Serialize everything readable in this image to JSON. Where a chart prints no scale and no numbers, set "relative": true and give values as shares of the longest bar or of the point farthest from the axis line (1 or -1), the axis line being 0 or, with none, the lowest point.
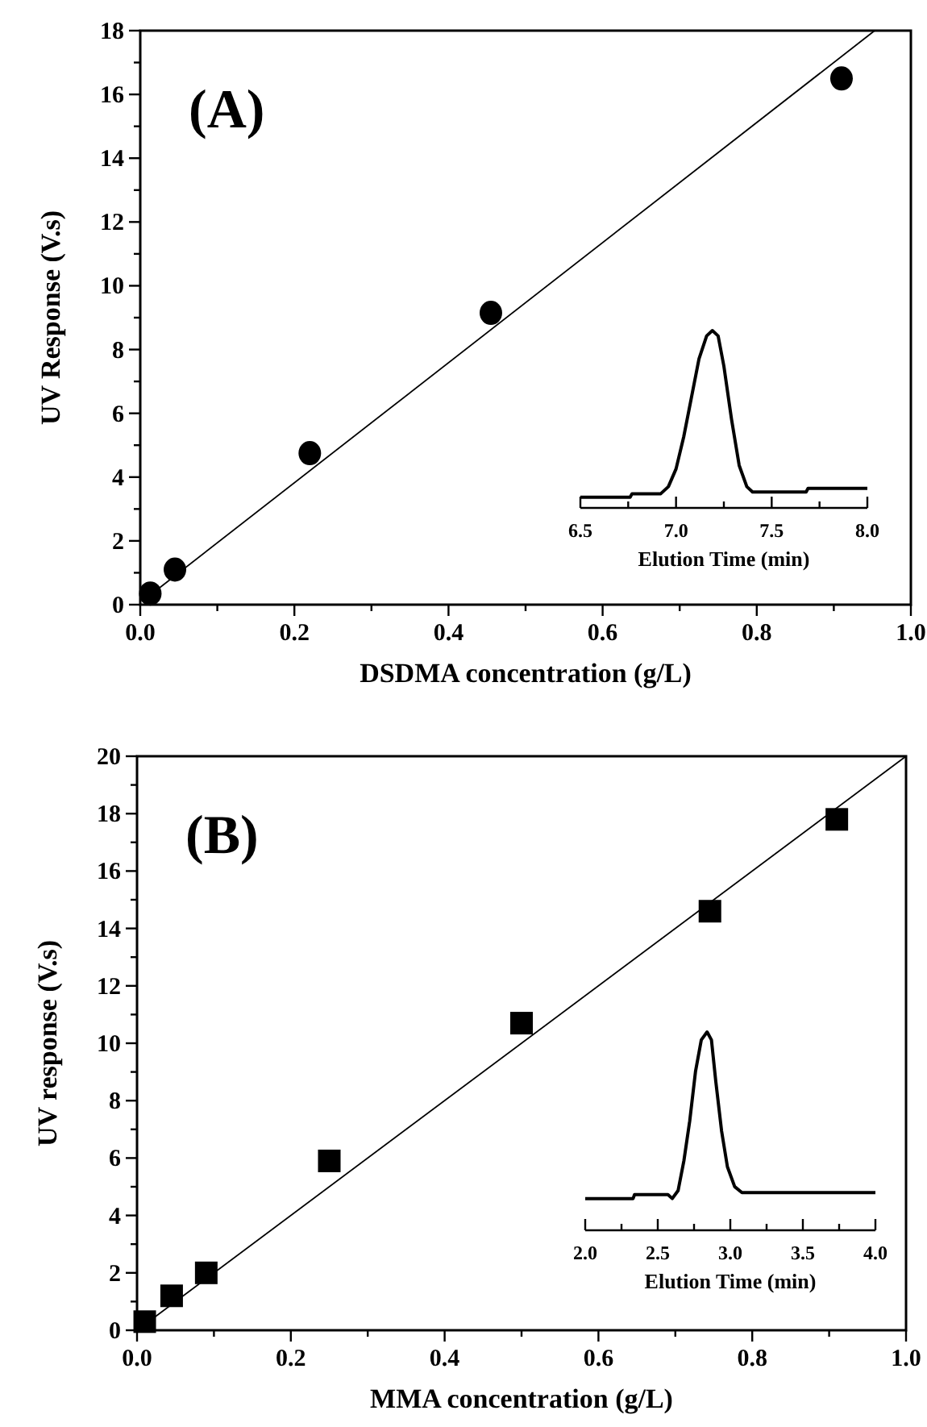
{
  "chart_data": [
    {
      "type": "scatter",
      "xlabel": "DSDMA concentration (g/L)",
      "ylabel": "UV Response (V.s)",
      "annotations": [
        "(A)"
      ],
      "xlim": [
        0,
        1
      ],
      "ylim": [
        0,
        18
      ],
      "xticks": [
        {
          "value": 0,
          "label": "0.0"
        },
        {
          "value": 0.1,
          "label": null
        },
        {
          "value": 0.2,
          "label": "0.2"
        },
        {
          "value": 0.3,
          "label": null
        },
        {
          "value": 0.4,
          "label": "0.4"
        },
        {
          "value": 0.5,
          "label": null
        },
        {
          "value": 0.6,
          "label": "0.6"
        },
        {
          "value": 0.7,
          "label": null
        },
        {
          "value": 0.8,
          "label": "0.8"
        },
        {
          "value": 0.9,
          "label": null
        },
        {
          "value": 1,
          "label": "1.0"
        }
      ],
      "yticks": [
        0,
        {
          "value": 1,
          "label": null
        },
        2,
        {
          "value": 3,
          "label": null
        },
        4,
        {
          "value": 5,
          "label": null
        },
        6,
        {
          "value": 7,
          "label": null
        },
        8,
        {
          "value": 9,
          "label": null
        },
        10,
        {
          "value": 11,
          "label": null
        },
        12,
        {
          "value": 13,
          "label": null
        },
        14,
        {
          "value": 15,
          "label": null
        },
        16,
        {
          "value": 17,
          "label": null
        },
        18
      ],
      "series": [
        {
          "color": "#000000",
          "marker": "circle",
          "x": [
            0.013,
            0.045,
            0.22,
            0.455,
            0.91
          ],
          "values": [
            0.35,
            1.1,
            4.75,
            9.15,
            16.5
          ]
        },
        {
          "type": "line",
          "marker": "none",
          "color": "#000000",
          "x": [
            0.005,
            0.953
          ],
          "values": [
            0.15,
            18
          ]
        }
      ]
    },
    {
      "type": "line",
      "relative": true,
      "xlabel": "Elution Time (min)",
      "tick_labels": "x",
      "xlim": [
        6.5,
        8.0
      ],
      "xticks": [
        {
          "value": 6.5,
          "label": "6.5"
        },
        {
          "value": 6.75,
          "label": null
        },
        {
          "value": 7,
          "label": "7.0"
        },
        {
          "value": 7.25,
          "label": null
        },
        {
          "value": 7.5,
          "label": "7.5"
        },
        {
          "value": 7.75,
          "label": null
        },
        {
          "value": 8,
          "label": "8.0"
        }
      ],
      "series": [
        {
          "color": "#000000",
          "x": [
            6.5,
            6.76,
            6.77,
            6.92,
            6.96,
            7.0,
            7.04,
            7.08,
            7.12,
            7.16,
            7.19,
            7.22,
            7.25,
            7.29,
            7.33,
            7.37,
            7.4,
            7.5,
            7.68,
            7.69,
            8.0
          ],
          "values": [
            0.06,
            0.06,
            0.08,
            0.08,
            0.12,
            0.22,
            0.4,
            0.62,
            0.84,
            0.97,
            1.0,
            0.97,
            0.8,
            0.5,
            0.24,
            0.12,
            0.09,
            0.09,
            0.09,
            0.11,
            0.11
          ]
        }
      ]
    },
    {
      "type": "scatter",
      "xlabel": "MMA concentration (g/L)",
      "ylabel": "UV response (V.s)",
      "annotations": [
        "(B)"
      ],
      "xlim": [
        0,
        1
      ],
      "ylim": [
        0,
        20
      ],
      "xticks": [
        {
          "value": 0,
          "label": "0.0"
        },
        {
          "value": 0.1,
          "label": null
        },
        {
          "value": 0.2,
          "label": "0.2"
        },
        {
          "value": 0.3,
          "label": null
        },
        {
          "value": 0.4,
          "label": "0.4"
        },
        {
          "value": 0.5,
          "label": null
        },
        {
          "value": 0.6,
          "label": "0.6"
        },
        {
          "value": 0.7,
          "label": null
        },
        {
          "value": 0.8,
          "label": "0.8"
        },
        {
          "value": 0.9,
          "label": null
        },
        {
          "value": 1,
          "label": "1.0"
        }
      ],
      "yticks": [
        0,
        {
          "value": 1,
          "label": null
        },
        2,
        {
          "value": 3,
          "label": null
        },
        4,
        {
          "value": 5,
          "label": null
        },
        6,
        {
          "value": 7,
          "label": null
        },
        8,
        {
          "value": 9,
          "label": null
        },
        10,
        {
          "value": 11,
          "label": null
        },
        12,
        {
          "value": 13,
          "label": null
        },
        14,
        {
          "value": 15,
          "label": null
        },
        16,
        {
          "value": 17,
          "label": null
        },
        18,
        {
          "value": 19,
          "label": null
        },
        20
      ],
      "series": [
        {
          "color": "#000000",
          "marker": "square",
          "x": [
            0.01,
            0.045,
            0.09,
            0.25,
            0.5,
            0.745,
            0.91
          ],
          "values": [
            0.3,
            1.2,
            2.0,
            5.9,
            10.7,
            14.6,
            17.8
          ]
        },
        {
          "type": "line",
          "marker": "none",
          "color": "#000000",
          "x": [
            0.005,
            1.0
          ],
          "values": [
            0.1,
            20
          ]
        }
      ]
    },
    {
      "type": "line",
      "relative": true,
      "xlabel": "Elution Time (min)",
      "tick_labels": "x",
      "xlim": [
        2.0,
        4.0
      ],
      "xticks": [
        {
          "value": 2,
          "label": "2.0"
        },
        {
          "value": 2.25,
          "label": null
        },
        {
          "value": 2.5,
          "label": "2.5"
        },
        {
          "value": 2.75,
          "label": null
        },
        {
          "value": 3,
          "label": "3.0"
        },
        {
          "value": 3.25,
          "label": null
        },
        {
          "value": 3.5,
          "label": "3.5"
        },
        {
          "value": 3.75,
          "label": null
        },
        {
          "value": 4,
          "label": "4.0"
        }
      ],
      "series": [
        {
          "color": "#000000",
          "x": [
            2.0,
            2.33,
            2.34,
            2.57,
            2.6,
            2.64,
            2.68,
            2.72,
            2.76,
            2.8,
            2.84,
            2.87,
            2.9,
            2.94,
            2.98,
            3.03,
            3.08,
            3.11,
            4.0
          ],
          "values": [
            0.16,
            0.16,
            0.18,
            0.18,
            0.16,
            0.2,
            0.35,
            0.55,
            0.8,
            0.96,
            1.0,
            0.96,
            0.75,
            0.5,
            0.32,
            0.22,
            0.19,
            0.19,
            0.19
          ]
        }
      ]
    }
  ]
}
